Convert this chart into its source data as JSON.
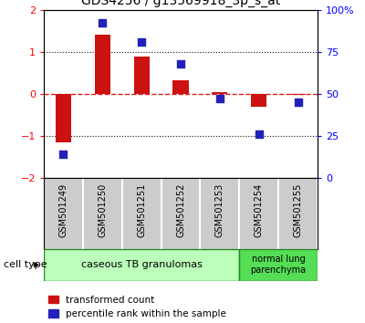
{
  "title": "GDS4256 / g13569918_3p_s_at",
  "samples": [
    "GSM501249",
    "GSM501250",
    "GSM501251",
    "GSM501252",
    "GSM501253",
    "GSM501254",
    "GSM501255"
  ],
  "transformed_count": [
    -1.15,
    1.4,
    0.88,
    0.32,
    0.03,
    -0.32,
    -0.03
  ],
  "percentile_rank": [
    14,
    92,
    81,
    68,
    47,
    26,
    45
  ],
  "ylim_left": [
    -2,
    2
  ],
  "ylim_right": [
    0,
    100
  ],
  "yticks_left": [
    -2,
    -1,
    0,
    1,
    2
  ],
  "yticks_right": [
    0,
    25,
    50,
    75,
    100
  ],
  "ytick_labels_right": [
    "0",
    "25",
    "50",
    "75",
    "100%"
  ],
  "bar_color": "#cc1111",
  "dot_color": "#2222bb",
  "hline_color": "#dd2222",
  "dotted_color": "#111111",
  "cell_type_0_label": "caseous TB granulomas",
  "cell_type_0_color": "#bbffbb",
  "cell_type_1_label": "normal lung\nparenchyma",
  "cell_type_1_color": "#55dd55",
  "sample_box_color": "#cccccc",
  "legend_red": "transformed count",
  "legend_blue": "percentile rank within the sample",
  "cell_type_label": "cell type"
}
